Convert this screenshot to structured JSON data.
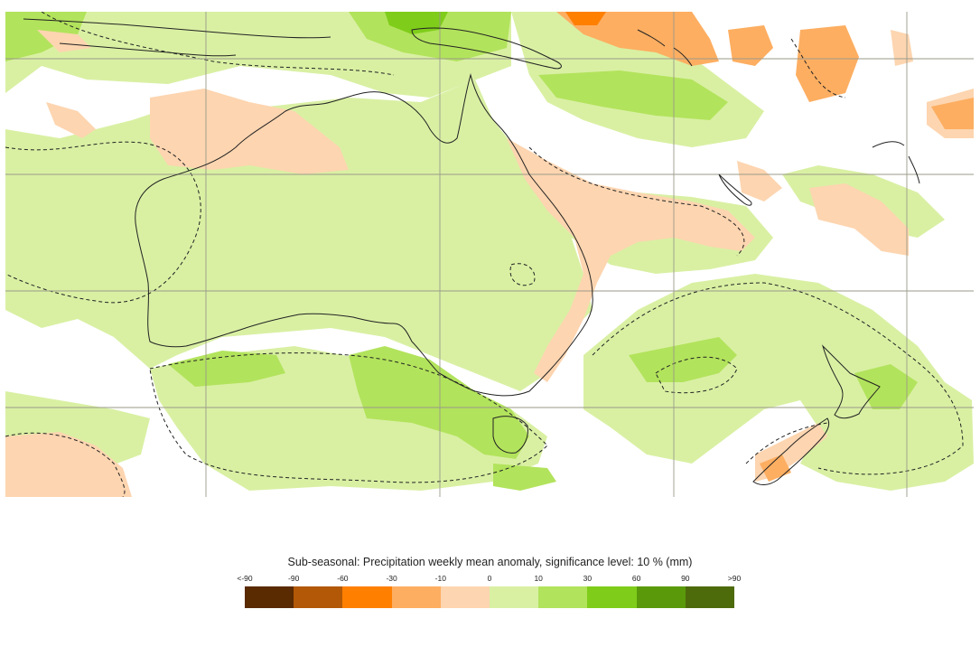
{
  "title": "Sub-seasonal: Precipitation weekly mean anomaly, significance level: 10 % (mm)",
  "legend": {
    "tick_labels": [
      "<-90",
      "-90",
      "-60",
      "-30",
      "-10",
      "0",
      "10",
      "30",
      "60",
      "90",
      ">90"
    ],
    "colors": [
      "#5a2a00",
      "#b35806",
      "#ff7f00",
      "#fdae61",
      "#fdd5b0",
      "#d9f0a3",
      "#b2e35c",
      "#7fcd1a",
      "#5a9a0a",
      "#4d6b0a"
    ]
  },
  "map_colors": {
    "ocean": "#ffffff",
    "grid": "#9a9a8a",
    "coast": "#222222",
    "light_green": "#d9f0a3",
    "mid_green": "#b2e35c",
    "strong_green": "#7fcd1a",
    "light_orange": "#fdd5b0",
    "mid_orange": "#fdae61",
    "strong_orange": "#ff7f00"
  }
}
